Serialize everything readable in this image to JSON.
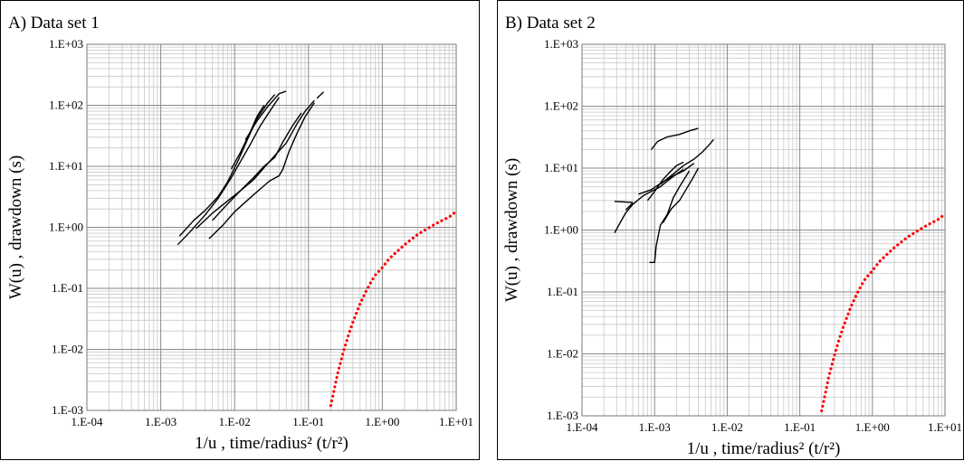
{
  "chart_data": [
    {
      "type": "line",
      "title": "A) Data set 1",
      "xlabel": "1/u , time/radius² (t/r²)",
      "ylabel": "W(u) ,  drawdown (s)",
      "x_scale": "log",
      "y_scale": "log",
      "xlim": [
        0.0001,
        10
      ],
      "ylim": [
        0.001,
        1000
      ],
      "grid": true,
      "x_ticks": [
        "1.E-04",
        "1.E-03",
        "1.E-02",
        "1.E-01",
        "1.E+00",
        "1.E+01"
      ],
      "y_ticks": [
        "1.E-03",
        "1.E-02",
        "1.E-01",
        "1.E+00",
        "1.E+01",
        "1.E+02",
        "1.E+03"
      ],
      "series": [
        {
          "kind": "drawdown",
          "color": "#000000",
          "points": [
            [
              0.0017,
              0.52
            ],
            [
              0.0025,
              0.85
            ],
            [
              0.004,
              1.6
            ],
            [
              0.006,
              3.0
            ],
            [
              0.009,
              6.5
            ],
            [
              0.012,
              12
            ],
            [
              0.016,
              22
            ],
            [
              0.022,
              45
            ],
            [
              0.03,
              80
            ],
            [
              0.04,
              135
            ]
          ]
        },
        {
          "kind": "drawdown",
          "color": "#000000",
          "points": [
            [
              0.0018,
              0.72
            ],
            [
              0.0028,
              1.3
            ],
            [
              0.004,
              1.9
            ],
            [
              0.006,
              3.2
            ],
            [
              0.008,
              5.5
            ],
            [
              0.011,
              12
            ],
            [
              0.015,
              28
            ],
            [
              0.02,
              60
            ],
            [
              0.028,
              110
            ],
            [
              0.035,
              150
            ]
          ]
        },
        {
          "kind": "drawdown",
          "color": "#000000",
          "points": [
            [
              0.009,
              9
            ],
            [
              0.012,
              17
            ],
            [
              0.016,
              35
            ],
            [
              0.02,
              65
            ],
            [
              0.025,
              100
            ]
          ]
        },
        {
          "kind": "drawdown",
          "color": "#000000",
          "points": [
            [
              0.014,
              27
            ],
            [
              0.02,
              55
            ],
            [
              0.028,
              95
            ],
            [
              0.04,
              155
            ],
            [
              0.05,
              170
            ]
          ]
        },
        {
          "kind": "drawdown",
          "color": "#000000",
          "points": [
            [
              0.003,
              0.95
            ],
            [
              0.005,
              1.7
            ],
            [
              0.008,
              2.7
            ],
            [
              0.012,
              4.0
            ],
            [
              0.018,
              6.0
            ],
            [
              0.025,
              9.5
            ],
            [
              0.035,
              15
            ],
            [
              0.05,
              24
            ],
            [
              0.07,
              50
            ],
            [
              0.09,
              80
            ],
            [
              0.12,
              120
            ]
          ]
        },
        {
          "kind": "drawdown",
          "color": "#000000",
          "points": [
            [
              0.0045,
              0.65
            ],
            [
              0.007,
              1.1
            ],
            [
              0.01,
              1.8
            ],
            [
              0.015,
              2.8
            ],
            [
              0.022,
              4.2
            ],
            [
              0.03,
              5.8
            ],
            [
              0.04,
              7.0
            ],
            [
              0.045,
              9.0
            ],
            [
              0.055,
              18
            ],
            [
              0.07,
              35
            ],
            [
              0.09,
              65
            ],
            [
              0.12,
              110
            ]
          ]
        },
        {
          "kind": "drawdown",
          "color": "#000000",
          "points": [
            [
              0.005,
              1.3
            ],
            [
              0.008,
              2.4
            ],
            [
              0.012,
              4.0
            ],
            [
              0.018,
              6.5
            ],
            [
              0.025,
              10
            ],
            [
              0.035,
              14
            ],
            [
              0.045,
              25
            ],
            [
              0.06,
              45
            ],
            [
              0.08,
              75
            ]
          ]
        },
        {
          "kind": "drawdown",
          "color": "#000000",
          "points": [
            [
              0.13,
              130
            ],
            [
              0.16,
              165
            ]
          ]
        },
        {
          "kind": "theis",
          "color": "#ff0000",
          "points": [
            [
              0.2,
              0.0012
            ],
            [
              0.25,
              0.0042
            ],
            [
              0.3,
              0.0095
            ],
            [
              0.35,
              0.0175
            ],
            [
              0.4,
              0.028
            ],
            [
              0.5,
              0.056
            ],
            [
              0.6,
              0.089
            ],
            [
              0.7,
              0.126
            ],
            [
              0.8,
              0.164
            ],
            [
              1.0,
              0.219
            ],
            [
              1.25,
              0.31
            ],
            [
              1.5,
              0.38
            ],
            [
              2.0,
              0.52
            ],
            [
              3.0,
              0.76
            ],
            [
              4.0,
              0.94
            ],
            [
              5.0,
              1.1
            ],
            [
              6.0,
              1.24
            ],
            [
              8.0,
              1.47
            ],
            [
              10.0,
              1.82
            ]
          ]
        }
      ]
    },
    {
      "type": "line",
      "title": "B) Data set 2",
      "xlabel": "1/u , time/radius² (t/r²)",
      "ylabel": "W(u) ,  drawdown (s)",
      "x_scale": "log",
      "y_scale": "log",
      "xlim": [
        0.0001,
        10
      ],
      "ylim": [
        0.001,
        1000
      ],
      "grid": true,
      "x_ticks": [
        "1.E-04",
        "1.E-03",
        "1.E-02",
        "1.E-01",
        "1.E+00",
        "1.E+01"
      ],
      "y_ticks": [
        "1.E-03",
        "1.E-02",
        "1.E-01",
        "1.E+00",
        "1.E+01",
        "1.E+02",
        "1.E+03"
      ],
      "series": [
        {
          "kind": "drawdown",
          "color": "#000000",
          "points": [
            [
              0.00028,
              0.9
            ],
            [
              0.0004,
              1.9
            ],
            [
              0.0005,
              2.6
            ],
            [
              0.0007,
              3.6
            ],
            [
              0.0009,
              4.2
            ],
            [
              0.0012,
              5.0
            ],
            [
              0.0015,
              6.2
            ],
            [
              0.002,
              8.0
            ],
            [
              0.0025,
              9.5
            ]
          ]
        },
        {
          "kind": "drawdown",
          "color": "#000000",
          "points": [
            [
              0.00028,
              2.9
            ],
            [
              0.0005,
              2.8
            ]
          ]
        },
        {
          "kind": "drawdown",
          "color": "#000000",
          "points": [
            [
              0.0004,
              2.1
            ],
            [
              0.0005,
              2.75
            ]
          ]
        },
        {
          "kind": "drawdown",
          "color": "#000000",
          "points": [
            [
              0.0006,
              3.8
            ],
            [
              0.0009,
              4.5
            ],
            [
              0.0013,
              6.0
            ],
            [
              0.0018,
              7.5
            ],
            [
              0.0025,
              9.0
            ],
            [
              0.0035,
              12
            ]
          ]
        },
        {
          "kind": "drawdown",
          "color": "#000000",
          "points": [
            [
              0.0008,
              3.0
            ],
            [
              0.001,
              4.2
            ],
            [
              0.0013,
              6.5
            ],
            [
              0.0016,
              8.5
            ],
            [
              0.002,
              11
            ],
            [
              0.0025,
              12.5
            ]
          ]
        },
        {
          "kind": "drawdown",
          "color": "#000000",
          "points": [
            [
              0.0009,
              20
            ],
            [
              0.0011,
              27
            ],
            [
              0.0015,
              32
            ],
            [
              0.0022,
              35
            ],
            [
              0.003,
              40
            ],
            [
              0.004,
              44
            ]
          ]
        },
        {
          "kind": "drawdown",
          "color": "#000000",
          "points": [
            [
              0.0012,
              5.5
            ],
            [
              0.0018,
              8.0
            ],
            [
              0.0025,
              11
            ],
            [
              0.0035,
              14
            ],
            [
              0.0045,
              18
            ],
            [
              0.0055,
              23
            ],
            [
              0.0065,
              29
            ]
          ]
        },
        {
          "kind": "drawdown",
          "color": "#000000",
          "points": [
            [
              0.00085,
              0.3
            ],
            [
              0.001,
              0.3
            ],
            [
              0.00105,
              0.55
            ],
            [
              0.0012,
              1.2
            ],
            [
              0.0015,
              1.8
            ],
            [
              0.0018,
              3.3
            ],
            [
              0.0022,
              5.0
            ],
            [
              0.003,
              9.0
            ]
          ]
        },
        {
          "kind": "drawdown",
          "color": "#000000",
          "points": [
            [
              0.0013,
              1.3
            ],
            [
              0.0017,
              2.2
            ],
            [
              0.0022,
              3.0
            ],
            [
              0.0028,
              4.8
            ],
            [
              0.0035,
              7.5
            ],
            [
              0.004,
              10
            ]
          ]
        },
        {
          "kind": "theis",
          "color": "#ff0000",
          "points": [
            [
              0.2,
              0.0012
            ],
            [
              0.25,
              0.0042
            ],
            [
              0.3,
              0.0095
            ],
            [
              0.35,
              0.0175
            ],
            [
              0.4,
              0.028
            ],
            [
              0.5,
              0.056
            ],
            [
              0.6,
              0.089
            ],
            [
              0.7,
              0.126
            ],
            [
              0.8,
              0.164
            ],
            [
              1.0,
              0.219
            ],
            [
              1.25,
              0.31
            ],
            [
              1.5,
              0.38
            ],
            [
              2.0,
              0.52
            ],
            [
              3.0,
              0.76
            ],
            [
              4.0,
              0.94
            ],
            [
              5.0,
              1.1
            ],
            [
              6.0,
              1.24
            ],
            [
              8.0,
              1.47
            ],
            [
              10.0,
              1.82
            ]
          ]
        }
      ]
    }
  ]
}
